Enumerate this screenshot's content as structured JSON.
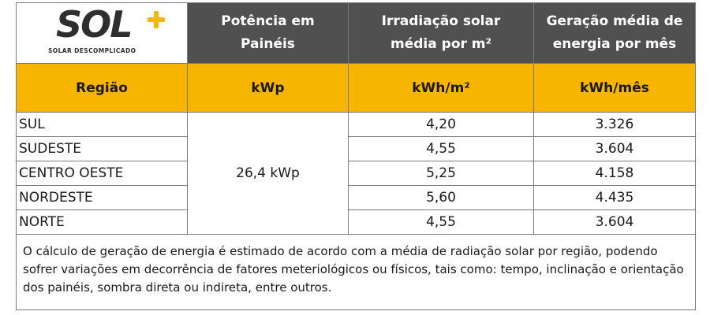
{
  "logo": {
    "wordmark": "SOL",
    "plus_icon": "plus-icon",
    "tagline": "SOLAR DESCOMPLICADO",
    "accent_color": "#f5b800"
  },
  "header": {
    "col2": [
      "Potência em",
      "Painéis"
    ],
    "col3": [
      "Irradiação solar",
      "média por m²"
    ],
    "col4": [
      "Geração média de",
      "energia por mês"
    ]
  },
  "units_row": {
    "region": "Região",
    "power": "kWp",
    "irradiation": "kWh/m²",
    "generation": "kWh/mês"
  },
  "power_value": "26,4 kWp",
  "rows": [
    {
      "region": "SUL",
      "irradiation": "4,20",
      "generation": "3.326"
    },
    {
      "region": "SUDESTE",
      "irradiation": "4,55",
      "generation": "3.604"
    },
    {
      "region": "CENTRO OESTE",
      "irradiation": "5,25",
      "generation": "4.158"
    },
    {
      "region": "NORDESTE",
      "irradiation": "5,60",
      "generation": "4.435"
    },
    {
      "region": "NORTE",
      "irradiation": "4,55",
      "generation": "3.604"
    }
  ],
  "note": "O cálculo de geração de energia é estimado de acordo com a média de radiação solar por região, podendo sofrer variações em decorrência de fatores meteriológicos ou físicos, tais como: tempo, inclinação e orientação dos painéis, sombra direta ou indireta, entre outros.",
  "colors": {
    "header_gray": "#505050",
    "unit_yellow": "#f7b500"
  }
}
